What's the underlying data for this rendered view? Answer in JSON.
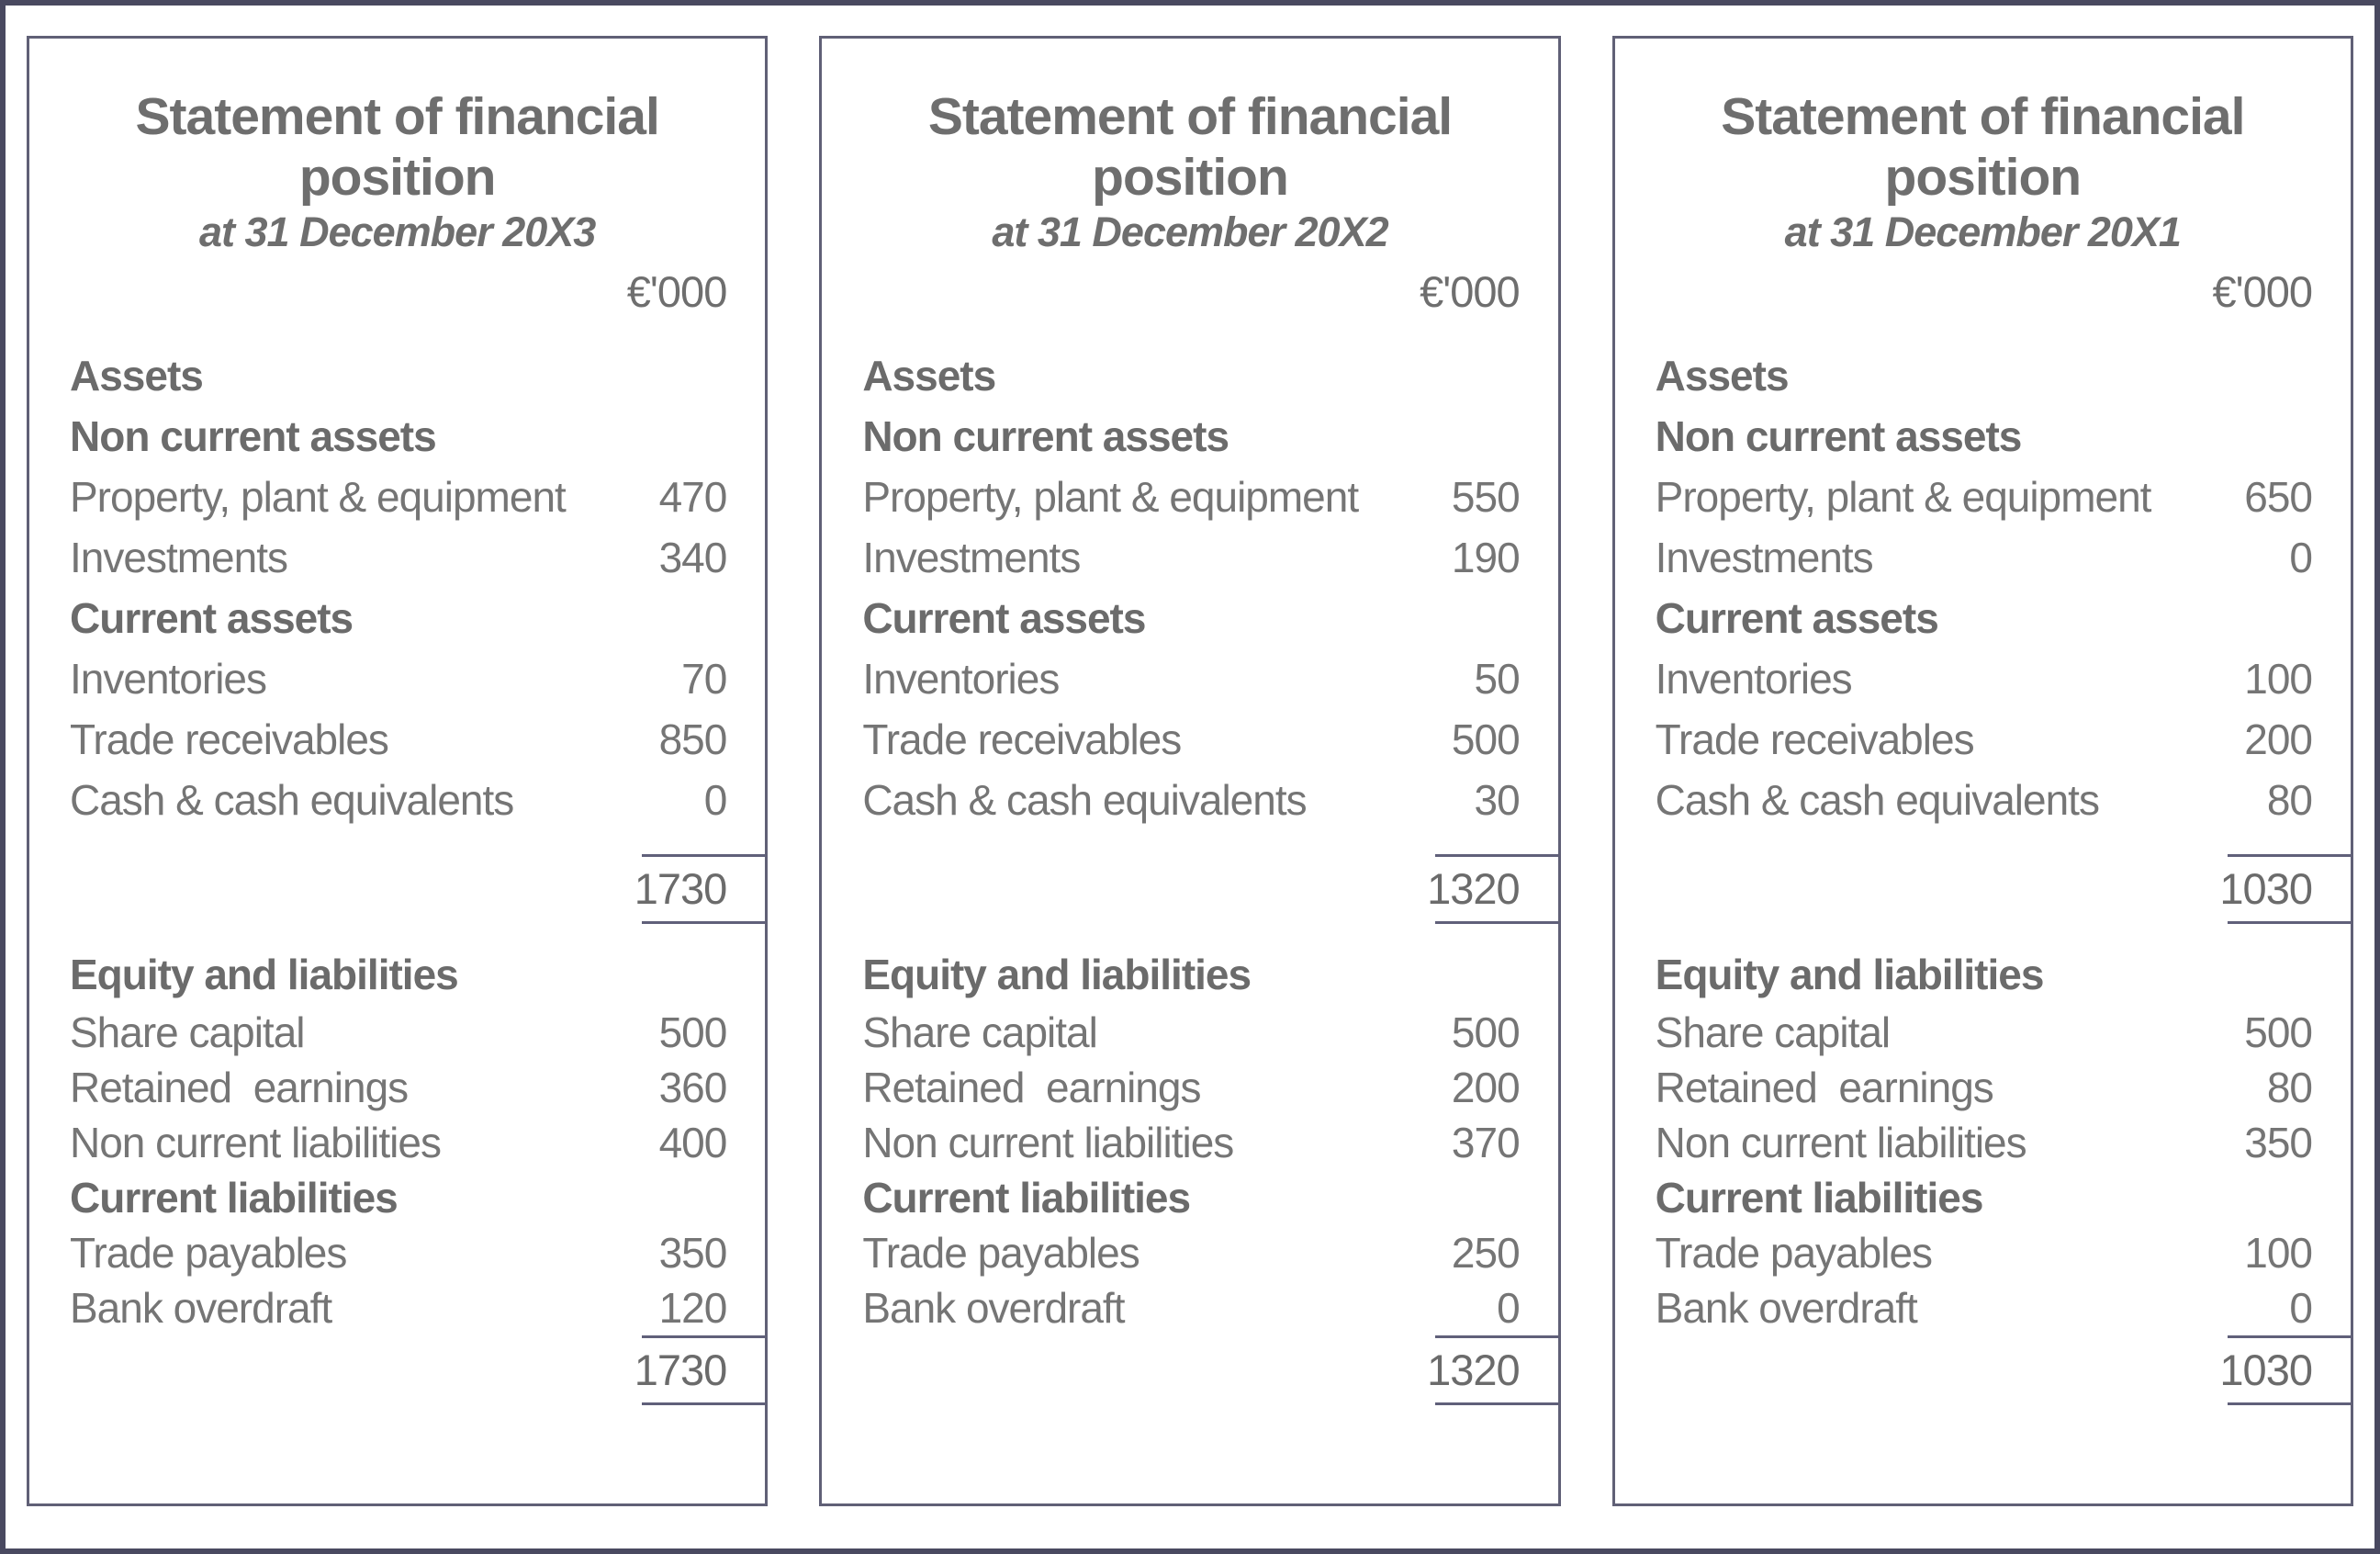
{
  "colors": {
    "outer_border": "#494960",
    "panel_border": "#606076",
    "text_gray": "#757575",
    "heading_gray": "#6b6b6b"
  },
  "statements": [
    {
      "title_lines": [
        "Statement of financial",
        "position"
      ],
      "subtitle": "at 31 December 20X3",
      "unit": "€'000",
      "assets": {
        "section_label": "Assets",
        "non_current_label": "Non current assets",
        "items": [
          {
            "label": "Property, plant & equipment",
            "value": "470"
          },
          {
            "label": "Investments",
            "value": "340"
          }
        ],
        "current_label": "Current assets",
        "current_items": [
          {
            "label": "Inventories",
            "value": "70"
          },
          {
            "label": "Trade receivables",
            "value": "850"
          },
          {
            "label": "Cash & cash equivalents",
            "value": "0"
          }
        ],
        "total": "1730"
      },
      "equity_liabilities": {
        "section_label": "Equity and liabilities",
        "items": [
          {
            "label": "Share capital",
            "value": "500"
          },
          {
            "label": "Retained  earnings",
            "value": "360"
          },
          {
            "label": "Non current liabilities",
            "value": "400"
          }
        ],
        "current_label": "Current liabilities",
        "current_items": [
          {
            "label": "Trade payables",
            "value": "350"
          },
          {
            "label": "Bank overdraft",
            "value": "120"
          }
        ],
        "total": "1730"
      }
    },
    {
      "title_lines": [
        "Statement of financial",
        "position"
      ],
      "subtitle": "at 31 December 20X2",
      "unit": "€'000",
      "assets": {
        "section_label": "Assets",
        "non_current_label": "Non current assets",
        "items": [
          {
            "label": "Property, plant & equipment",
            "value": "550"
          },
          {
            "label": "Investments",
            "value": "190"
          }
        ],
        "current_label": "Current assets",
        "current_items": [
          {
            "label": "Inventories",
            "value": "50"
          },
          {
            "label": "Trade receivables",
            "value": "500"
          },
          {
            "label": "Cash & cash equivalents",
            "value": "30"
          }
        ],
        "total": "1320"
      },
      "equity_liabilities": {
        "section_label": "Equity and liabilities",
        "items": [
          {
            "label": "Share capital",
            "value": "500"
          },
          {
            "label": "Retained  earnings",
            "value": "200"
          },
          {
            "label": "Non current liabilities",
            "value": "370"
          }
        ],
        "current_label": "Current liabilities",
        "current_items": [
          {
            "label": "Trade payables",
            "value": "250"
          },
          {
            "label": "Bank overdraft",
            "value": "0"
          }
        ],
        "total": "1320"
      }
    },
    {
      "title_lines": [
        "Statement of financial",
        "position"
      ],
      "subtitle": "at 31 December 20X1",
      "unit": "€'000",
      "assets": {
        "section_label": "Assets",
        "non_current_label": "Non current assets",
        "items": [
          {
            "label": "Property, plant & equipment",
            "value": "650"
          },
          {
            "label": "Investments",
            "value": "0"
          }
        ],
        "current_label": "Current assets",
        "current_items": [
          {
            "label": "Inventories",
            "value": "100"
          },
          {
            "label": "Trade receivables",
            "value": "200"
          },
          {
            "label": "Cash & cash equivalents",
            "value": "80"
          }
        ],
        "total": "1030"
      },
      "equity_liabilities": {
        "section_label": "Equity and liabilities",
        "items": [
          {
            "label": "Share capital",
            "value": "500"
          },
          {
            "label": "Retained  earnings",
            "value": "80"
          },
          {
            "label": "Non current liabilities",
            "value": "350"
          }
        ],
        "current_label": "Current liabilities",
        "current_items": [
          {
            "label": "Trade payables",
            "value": "100"
          },
          {
            "label": "Bank overdraft",
            "value": "0"
          }
        ],
        "total": "1030"
      }
    }
  ]
}
